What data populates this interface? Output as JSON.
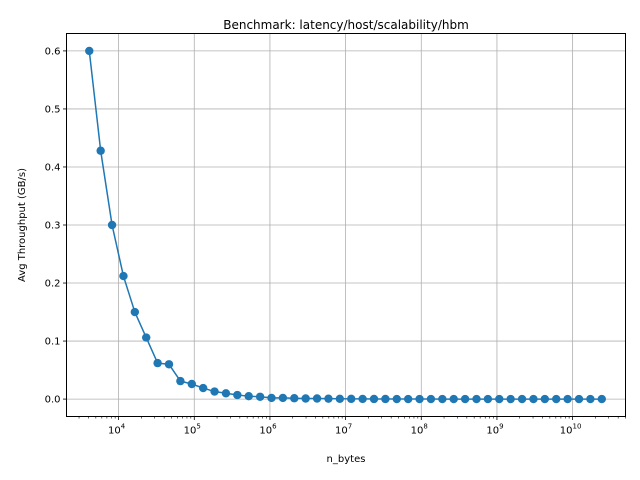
{
  "chart_data": {
    "type": "line",
    "title": "Benchmark: latency/host/scalability/hbm",
    "xlabel": "n_bytes",
    "ylabel": "Avg Throughput (GB/s)",
    "xscale": "log",
    "xlim": [
      2048,
      50000000000
    ],
    "ylim": [
      -0.03,
      0.63
    ],
    "grid": true,
    "series_color": "#1f77b4",
    "x_ticks": [
      {
        "value": 10000,
        "base": "10",
        "exp": "4"
      },
      {
        "value": 100000,
        "base": "10",
        "exp": "5"
      },
      {
        "value": 1000000,
        "base": "10",
        "exp": "6"
      },
      {
        "value": 10000000,
        "base": "10",
        "exp": "7"
      },
      {
        "value": 100000000,
        "base": "10",
        "exp": "8"
      },
      {
        "value": 1000000000,
        "base": "10",
        "exp": "9"
      },
      {
        "value": 10000000000,
        "base": "10",
        "exp": "10"
      }
    ],
    "y_ticks": [
      {
        "value": 0.0,
        "label": "0.0"
      },
      {
        "value": 0.1,
        "label": "0.1"
      },
      {
        "value": 0.2,
        "label": "0.2"
      },
      {
        "value": 0.3,
        "label": "0.3"
      },
      {
        "value": 0.4,
        "label": "0.4"
      },
      {
        "value": 0.5,
        "label": "0.5"
      },
      {
        "value": 0.6,
        "label": "0.6"
      }
    ],
    "series": [
      {
        "x": [
          4096,
          5793,
          8192,
          11585,
          16384,
          23170,
          32768,
          46341,
          65536,
          92682,
          131072,
          185364,
          262144,
          370728,
          524288,
          741455,
          1048576,
          1482910,
          2097152,
          2965821,
          4194304,
          5931642,
          8388608,
          11863283,
          16777216,
          23726566,
          33554432,
          47453133,
          67108864,
          94906266,
          134217728,
          189812531,
          268435456,
          379625062,
          536870912,
          759250125,
          1073741824,
          1518500250,
          2147483648,
          3037000500,
          4294967296,
          6074001000,
          8589934592,
          12148002000,
          17179869184,
          24296004000
        ],
        "y": [
          0.6,
          0.428,
          0.3,
          0.212,
          0.15,
          0.106,
          0.062,
          0.06,
          0.031,
          0.026,
          0.019,
          0.013,
          0.01,
          0.007,
          0.005,
          0.004,
          0.002,
          0.002,
          0.0015,
          0.001,
          0.001,
          0.0007,
          0.0005,
          0.0004,
          0.0003,
          0.0002,
          0.0002,
          0.0001,
          0.0001,
          0.0001,
          0.0001,
          0.0,
          0.0,
          0.0,
          0.0,
          0.0,
          0.0,
          0.0,
          0.0,
          0.0,
          0.0,
          0.0,
          0.0,
          0.0,
          0.0,
          0.0
        ]
      }
    ]
  }
}
